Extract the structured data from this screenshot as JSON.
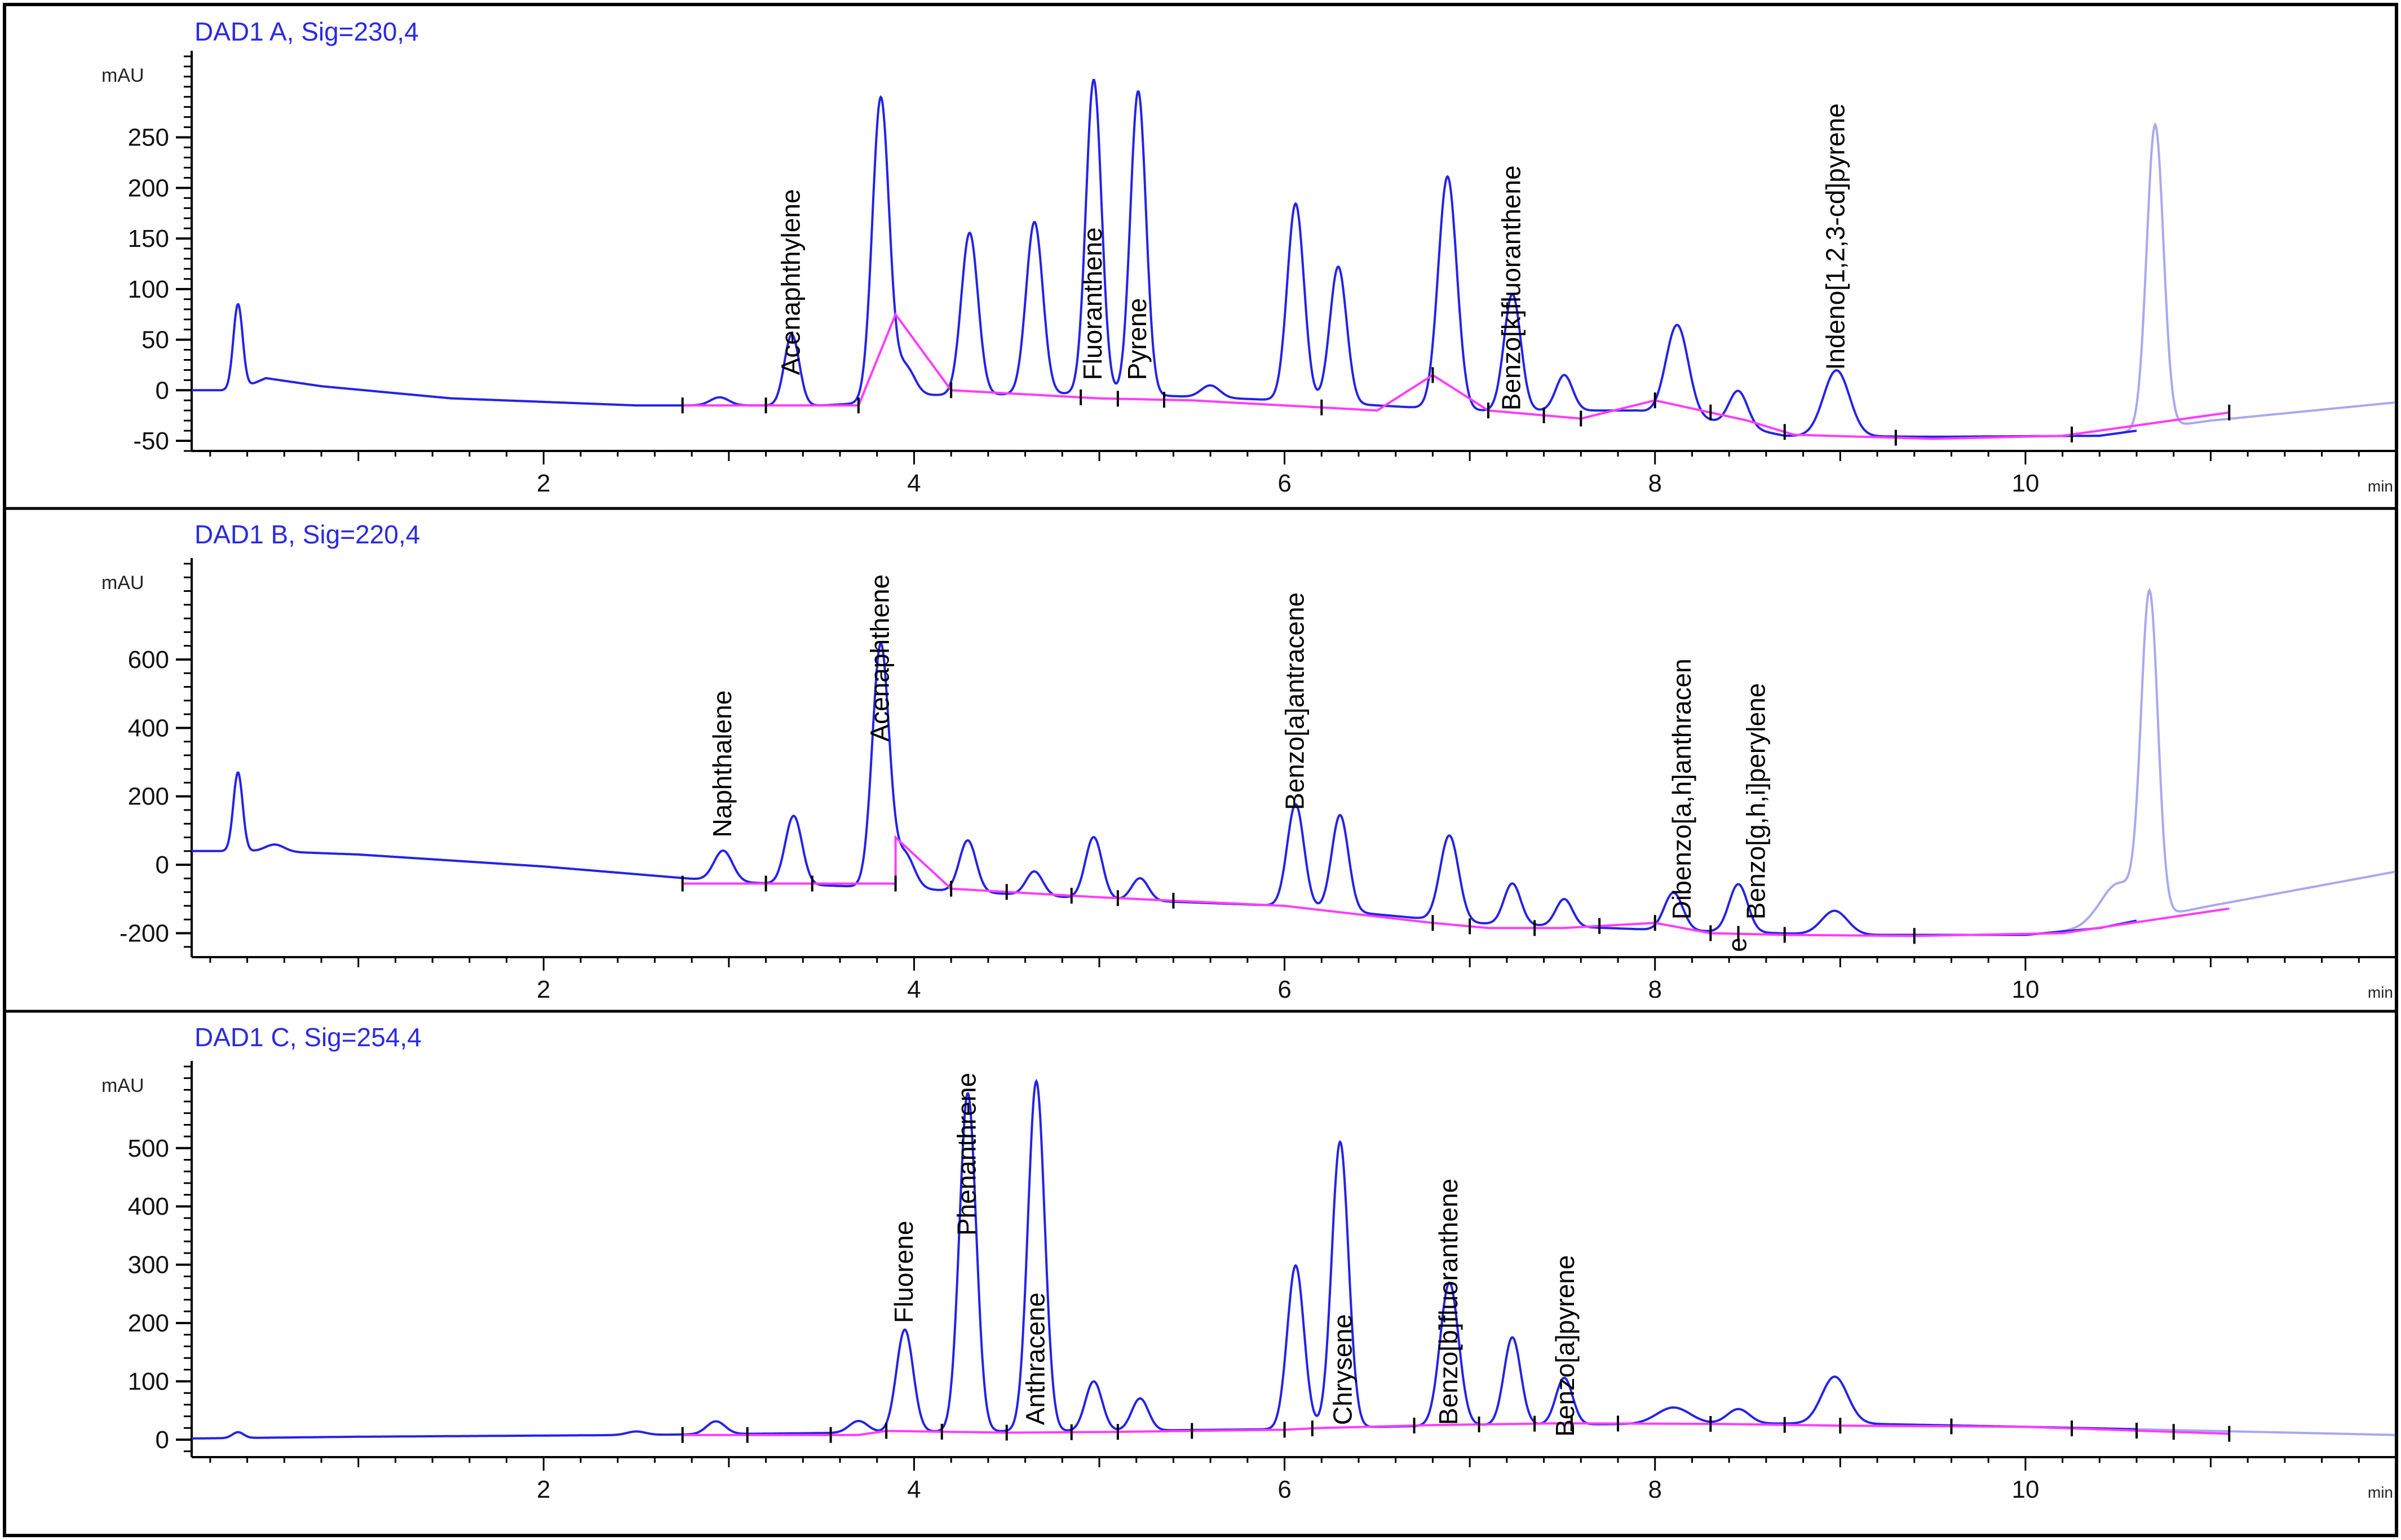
{
  "chart_data": [
    {
      "type": "line",
      "panel_label": "DAD1 A, Sig=230,4",
      "ylabel": "mAU",
      "xlabel": "min",
      "xlim": [
        0,
        12
      ],
      "ylim": [
        -60,
        330
      ],
      "x_ticks": [
        "2",
        "4",
        "6",
        "8",
        "10"
      ],
      "y_ticks": [
        "-50",
        "0",
        "50",
        "100",
        "150",
        "200",
        "250"
      ],
      "series": [
        {
          "trace": {
            "offset": 3,
            "baseline_points": [
              [
                0.1,
                0
              ],
              [
                0.35,
                0
              ],
              [
                0.5,
                12
              ],
              [
                0.8,
                4
              ],
              [
                1.5,
                -8
              ],
              [
                2.5,
                -15
              ],
              [
                3.5,
                -15
              ],
              [
                3.8,
                -12
              ],
              [
                4.0,
                -5
              ],
              [
                5,
                -3
              ],
              [
                6,
                -10
              ],
              [
                7,
                -20
              ],
              [
                7.9,
                -20
              ],
              [
                8.3,
                -30
              ],
              [
                8.7,
                -45
              ],
              [
                9.5,
                -46
              ],
              [
                10.4,
                -45
              ],
              [
                11,
                -30
              ],
              [
                12,
                -12
              ]
            ]
          },
          "peaks": [
            [
              0.35,
              85,
              0.025
            ],
            [
              2.95,
              8,
              0.05
            ],
            [
              3.34,
              70,
              0.04
            ],
            [
              3.82,
              300,
              0.045
            ],
            [
              3.95,
              30,
              0.05
            ],
            [
              4.3,
              160,
              0.045
            ],
            [
              4.65,
              170,
              0.045
            ],
            [
              4.97,
              310,
              0.042
            ],
            [
              5.21,
              300,
              0.042
            ],
            [
              5.6,
              12,
              0.05
            ],
            [
              6.06,
              195,
              0.045
            ],
            [
              6.29,
              135,
              0.045
            ],
            [
              6.88,
              230,
              0.05
            ],
            [
              7.23,
              115,
              0.045
            ],
            [
              7.51,
              35,
              0.045
            ],
            [
              8.12,
              90,
              0.06
            ],
            [
              8.45,
              35,
              0.05
            ],
            [
              8.98,
              65,
              0.07
            ]
          ],
          "ghost_peaks": [
            [
              10.7,
              300,
              0.045
            ]
          ]
        }
      ],
      "integration_baseline": [
        [
          2.75,
          -15
        ],
        [
          3.2,
          -15
        ],
        [
          3.7,
          -15
        ],
        [
          3.9,
          75
        ],
        [
          4.2,
          0
        ],
        [
          5.0,
          -8
        ],
        [
          5.5,
          -10
        ],
        [
          6.5,
          -20
        ],
        [
          6.8,
          15
        ],
        [
          7.1,
          -20
        ],
        [
          7.6,
          -28
        ],
        [
          8.0,
          -10
        ],
        [
          8.5,
          -30
        ],
        [
          8.75,
          -44
        ],
        [
          9.5,
          -48
        ],
        [
          10.2,
          -45
        ],
        [
          11.1,
          -22
        ]
      ],
      "tick_marks_x": [
        2.75,
        3.2,
        3.7,
        4.2,
        4.9,
        5.1,
        5.35,
        6.2,
        6.8,
        7.1,
        7.4,
        7.6,
        8.0,
        8.3,
        8.7,
        9.3,
        10.25,
        11.1
      ],
      "peak_labels": [
        {
          "label": "Acenaphthylene",
          "x": 3.34,
          "y": 15
        },
        {
          "label": "Fluoranthene",
          "x": 4.97,
          "y": 10
        },
        {
          "label": "Pyrene",
          "x": 5.21,
          "y": 10
        },
        {
          "label": "Benzo[k]fluoranthene",
          "x": 7.23,
          "y": -20
        },
        {
          "label": "Indeno[1,2,3-cd]pyrene",
          "x": 8.98,
          "y": 20
        }
      ]
    },
    {
      "type": "line",
      "panel_label": "DAD1 B, Sig=220,4",
      "ylabel": "mAU",
      "xlabel": "min",
      "xlim": [
        0,
        12
      ],
      "ylim": [
        -270,
        880
      ],
      "x_ticks": [
        "2",
        "4",
        "6",
        "8",
        "10"
      ],
      "y_ticks": [
        "-200",
        "0",
        "200",
        "400",
        "600"
      ],
      "series": [
        {
          "trace": {
            "offset": 20,
            "baseline_points": [
              [
                0.1,
                40
              ],
              [
                0.35,
                40
              ],
              [
                0.5,
                40
              ],
              [
                1,
                30
              ],
              [
                2,
                -5
              ],
              [
                3,
                -50
              ],
              [
                4,
                -70
              ],
              [
                5,
                -100
              ],
              [
                6,
                -120
              ],
              [
                7,
                -170
              ],
              [
                8,
                -190
              ],
              [
                9,
                -205
              ],
              [
                10,
                -205
              ],
              [
                10.4,
                -185
              ],
              [
                11,
                -120
              ],
              [
                12,
                -20
              ]
            ]
          },
          "peaks": [
            [
              0.35,
              230,
              0.025
            ],
            [
              0.55,
              20,
              0.05
            ],
            [
              2.97,
              90,
              0.05
            ],
            [
              3.35,
              200,
              0.045
            ],
            [
              3.82,
              710,
              0.045
            ],
            [
              3.95,
              100,
              0.05
            ],
            [
              4.29,
              150,
              0.045
            ],
            [
              4.65,
              70,
              0.045
            ],
            [
              4.97,
              180,
              0.045
            ],
            [
              5.22,
              65,
              0.045
            ],
            [
              6.06,
              300,
              0.045
            ],
            [
              6.3,
              280,
              0.045
            ],
            [
              6.89,
              250,
              0.05
            ],
            [
              7.23,
              120,
              0.045
            ],
            [
              7.51,
              80,
              0.045
            ],
            [
              8.1,
              110,
              0.05
            ],
            [
              8.45,
              140,
              0.05
            ],
            [
              8.97,
              70,
              0.07
            ]
          ],
          "ghost_peaks": [
            [
              10.67,
              930,
              0.045
            ],
            [
              10.5,
              120,
              0.1
            ]
          ]
        }
      ],
      "integration_baseline": [
        [
          2.75,
          -55
        ],
        [
          3.9,
          -55
        ],
        [
          3.9,
          80
        ],
        [
          4.2,
          -70
        ],
        [
          5,
          -95
        ],
        [
          6,
          -120
        ],
        [
          6.8,
          -170
        ],
        [
          7.1,
          -185
        ],
        [
          7.5,
          -185
        ],
        [
          8.0,
          -170
        ],
        [
          8.3,
          -200
        ],
        [
          8.7,
          -205
        ],
        [
          9.4,
          -208
        ],
        [
          10.2,
          -200
        ],
        [
          11.1,
          -128
        ]
      ],
      "tick_marks_x": [
        2.75,
        3.2,
        3.45,
        3.9,
        4.2,
        4.5,
        4.85,
        5.1,
        5.4,
        6.8,
        7.0,
        7.35,
        7.7,
        8.0,
        8.3,
        8.45,
        8.7,
        9.4
      ],
      "peak_labels": [
        {
          "label": "Naphthalene",
          "x": 2.97,
          "y": 80
        },
        {
          "label": "Acenaphthene",
          "x": 3.82,
          "y": 360
        },
        {
          "label": "Benzo[a]antracene",
          "x": 6.06,
          "y": 160
        },
        {
          "label": "Dibenzo[a,h]anthracen",
          "x": 8.15,
          "y": -160
        },
        {
          "label": "e",
          "x": 8.45,
          "y": -255
        },
        {
          "label": "Benzo[g,h,i]perylene",
          "x": 8.55,
          "y": -160
        }
      ]
    },
    {
      "type": "line",
      "panel_label": "DAD1 C, Sig=254,4",
      "ylabel": "mAU",
      "xlabel": "min",
      "xlim": [
        0,
        12
      ],
      "ylim": [
        -30,
        640
      ],
      "x_ticks": [
        "2",
        "4",
        "6",
        "8",
        "10"
      ],
      "y_ticks": [
        "0",
        "100",
        "200",
        "300",
        "400",
        "500"
      ],
      "series": [
        {
          "trace": {
            "offset": 0,
            "baseline_points": [
              [
                0.1,
                2
              ],
              [
                1,
                5
              ],
              [
                2.5,
                8
              ],
              [
                3.7,
                12
              ],
              [
                4.0,
                14
              ],
              [
                5,
                15
              ],
              [
                6,
                18
              ],
              [
                6.2,
                20
              ],
              [
                7,
                25
              ],
              [
                8,
                27
              ],
              [
                9,
                28
              ],
              [
                10,
                22
              ],
              [
                11,
                15
              ],
              [
                12,
                8
              ]
            ]
          },
          "peaks": [
            [
              0.35,
              10,
              0.03
            ],
            [
              2.5,
              6,
              0.05
            ],
            [
              2.93,
              22,
              0.05
            ],
            [
              3.7,
              20,
              0.05
            ],
            [
              3.95,
              175,
              0.045
            ],
            [
              4.29,
              580,
              0.045
            ],
            [
              4.66,
              600,
              0.045
            ],
            [
              4.97,
              85,
              0.045
            ],
            [
              5.22,
              55,
              0.045
            ],
            [
              6.06,
              280,
              0.045
            ],
            [
              6.3,
              490,
              0.045
            ],
            [
              6.89,
              245,
              0.05
            ],
            [
              7.23,
              150,
              0.045
            ],
            [
              7.51,
              80,
              0.045
            ],
            [
              8.1,
              28,
              0.09
            ],
            [
              8.45,
              25,
              0.06
            ],
            [
              8.97,
              80,
              0.07
            ]
          ],
          "ghost_peaks": []
        }
      ],
      "integration_baseline": [
        [
          2.75,
          8
        ],
        [
          3.2,
          8
        ],
        [
          3.7,
          8
        ],
        [
          3.85,
          15
        ],
        [
          4.5,
          12
        ],
        [
          5,
          13
        ],
        [
          6,
          17
        ],
        [
          6.2,
          20
        ],
        [
          6.8,
          25
        ],
        [
          7.5,
          28
        ],
        [
          8.3,
          27
        ],
        [
          9,
          24
        ],
        [
          10,
          22
        ],
        [
          11.1,
          10
        ]
      ],
      "tick_marks_x": [
        2.75,
        3.1,
        3.55,
        3.85,
        4.15,
        4.5,
        4.85,
        5.1,
        5.5,
        6.0,
        6.15,
        6.7,
        7.05,
        7.35,
        7.55,
        7.8,
        8.3,
        8.7,
        9.0,
        9.6,
        10.25,
        10.6,
        10.8,
        11.1
      ],
      "peak_labels": [
        {
          "label": "Fluorene",
          "x": 3.95,
          "y": 200
        },
        {
          "label": "Phenanthrene",
          "x": 4.29,
          "y": 350
        },
        {
          "label": "Anthracene",
          "x": 4.66,
          "y": 25
        },
        {
          "label": "Chrysene",
          "x": 6.32,
          "y": 25
        },
        {
          "label": "Benzo[b]fluoranthene",
          "x": 6.89,
          "y": 25
        },
        {
          "label": "Benzo[a]pyrene",
          "x": 7.52,
          "y": 5
        }
      ]
    }
  ]
}
